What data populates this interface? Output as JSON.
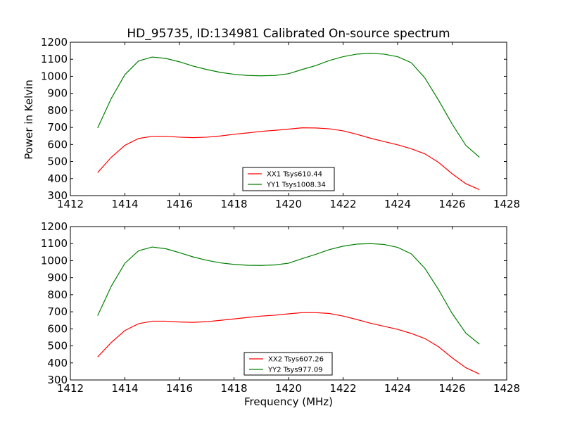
{
  "chart_data": {
    "title": "HD_95735, ID:134981 Calibrated On-source spectrum",
    "xlabel": "Frequency (MHz)",
    "ylabel": "Power in Kelvin",
    "colors": {
      "xx": "#ff0000",
      "yy": "#008000"
    },
    "panels": [
      {
        "type": "line",
        "xlim": [
          1412,
          1428
        ],
        "ylim": [
          300,
          1200
        ],
        "xticks": [
          "1412",
          "1414",
          "1416",
          "1418",
          "1420",
          "1422",
          "1424",
          "1426",
          "1428"
        ],
        "yticks": [
          "300",
          "400",
          "500",
          "600",
          "700",
          "800",
          "900",
          "1000",
          "1100",
          "1200"
        ],
        "legend_position": "lower-center",
        "series": [
          {
            "name": "XX1 Tsys610.44",
            "color": "#ff0000",
            "x": [
              1413.0,
              1413.5,
              1414.0,
              1414.5,
              1415.0,
              1415.5,
              1416.0,
              1416.5,
              1417.0,
              1417.5,
              1418.0,
              1418.5,
              1419.0,
              1419.5,
              1420.0,
              1420.5,
              1421.0,
              1421.5,
              1422.0,
              1422.5,
              1423.0,
              1423.5,
              1424.0,
              1424.5,
              1425.0,
              1425.5,
              1426.0,
              1426.5,
              1427.0
            ],
            "y": [
              435,
              525,
              595,
              635,
              648,
              648,
              643,
              640,
              643,
              650,
              660,
              668,
              677,
              683,
              690,
              698,
              697,
              692,
              680,
              660,
              637,
              617,
              598,
              575,
              545,
              495,
              428,
              370,
              335
            ]
          },
          {
            "name": "YY1 Tsys1008.34",
            "color": "#008000",
            "x": [
              1413.0,
              1413.5,
              1414.0,
              1414.5,
              1415.0,
              1415.5,
              1416.0,
              1416.5,
              1417.0,
              1417.5,
              1418.0,
              1418.5,
              1419.0,
              1419.5,
              1420.0,
              1420.5,
              1421.0,
              1421.5,
              1422.0,
              1422.5,
              1423.0,
              1423.5,
              1424.0,
              1424.5,
              1425.0,
              1425.5,
              1426.0,
              1426.5,
              1427.0
            ],
            "y": [
              697,
              870,
              1010,
              1090,
              1113,
              1105,
              1085,
              1060,
              1040,
              1023,
              1012,
              1005,
              1003,
              1005,
              1015,
              1040,
              1063,
              1093,
              1115,
              1130,
              1135,
              1130,
              1115,
              1080,
              990,
              860,
              720,
              595,
              525
            ]
          }
        ]
      },
      {
        "type": "line",
        "xlim": [
          1412,
          1428
        ],
        "ylim": [
          300,
          1200
        ],
        "xticks": [
          "1412",
          "1414",
          "1416",
          "1418",
          "1420",
          "1422",
          "1424",
          "1426",
          "1428"
        ],
        "yticks": [
          "300",
          "400",
          "500",
          "600",
          "700",
          "800",
          "900",
          "1000",
          "1100",
          "1200"
        ],
        "legend_position": "lower-center",
        "series": [
          {
            "name": "XX2 Tsys607.26",
            "color": "#ff0000",
            "x": [
              1413.0,
              1413.5,
              1414.0,
              1414.5,
              1415.0,
              1415.5,
              1416.0,
              1416.5,
              1417.0,
              1417.5,
              1418.0,
              1418.5,
              1419.0,
              1419.5,
              1420.0,
              1420.5,
              1421.0,
              1421.5,
              1422.0,
              1422.5,
              1423.0,
              1423.5,
              1424.0,
              1424.5,
              1425.0,
              1425.5,
              1426.0,
              1426.5,
              1427.0
            ],
            "y": [
              435,
              520,
              590,
              630,
              645,
              645,
              640,
              638,
              642,
              650,
              658,
              667,
              675,
              680,
              688,
              695,
              695,
              690,
              675,
              655,
              633,
              615,
              597,
              573,
              543,
              495,
              430,
              372,
              335
            ]
          },
          {
            "name": "YY2 Tsys977.09",
            "color": "#008000",
            "x": [
              1413.0,
              1413.5,
              1414.0,
              1414.5,
              1415.0,
              1415.5,
              1416.0,
              1416.5,
              1417.0,
              1417.5,
              1418.0,
              1418.5,
              1419.0,
              1419.5,
              1420.0,
              1420.5,
              1421.0,
              1421.5,
              1422.0,
              1422.5,
              1423.0,
              1423.5,
              1424.0,
              1424.5,
              1425.0,
              1425.5,
              1426.0,
              1426.5,
              1427.0
            ],
            "y": [
              677,
              850,
              985,
              1058,
              1080,
              1070,
              1047,
              1022,
              1002,
              987,
              978,
              973,
              972,
              975,
              985,
              1012,
              1037,
              1065,
              1085,
              1097,
              1100,
              1095,
              1078,
              1040,
              955,
              830,
              690,
              575,
              510
            ]
          }
        ]
      }
    ]
  }
}
